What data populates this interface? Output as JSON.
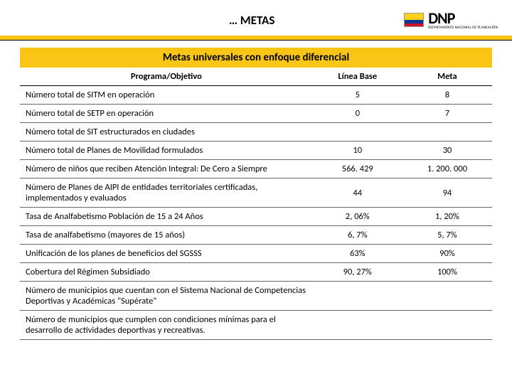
{
  "header": {
    "title": "… METAS",
    "logo_main": "DNP",
    "logo_sub": "DEPARTAMENTO NACIONAL DE PLANEACIÓN"
  },
  "banner": "Metas universales con enfoque diferencial",
  "columns": {
    "programa": "Programa/Objetivo",
    "linea_base": "Línea Base",
    "meta": "Meta"
  },
  "rows": [
    {
      "label": "Número total de SITM en operación",
      "lb": "5",
      "meta": "8"
    },
    {
      "label": "Número total de SETP en operación",
      "lb": "0",
      "meta": "7"
    },
    {
      "label": "Número total de SIT estructurados en ciudades",
      "lb": "",
      "meta": ""
    },
    {
      "label": "Número total de Planes de Movilidad formulados",
      "lb": "10",
      "meta": "30"
    },
    {
      "label": "Número de niños que reciben Atención Integral: De Cero a Siempre",
      "lb": "566. 429",
      "meta": "1. 200. 000"
    },
    {
      "label": "Número de Planes de AIPI de entidades territoriales certificadas, implementados y evaluados",
      "lb": "44",
      "meta": "94"
    },
    {
      "label": "Tasa de Analfabetismo Población de 15 a 24 Años",
      "lb": "2, 06%",
      "meta": "1, 20%"
    },
    {
      "label": "Tasa de analfabetismo (mayores de 15 años)",
      "lb": "6, 7%",
      "meta": "5, 7%"
    },
    {
      "label": "Unificación de los planes de beneficios del SGSSS",
      "lb": "63%",
      "meta": "90%"
    },
    {
      "label": "Cobertura del Régimen Subsidiado",
      "lb": "90, 27%",
      "meta": "100%"
    },
    {
      "label": "Número de municipios que cuentan con el Sistema Nacional de Competencias Deportivas y Académicas \"Supérate\"",
      "lb": "",
      "meta": ""
    },
    {
      "label": "Número de municipios que cumplen con condiciones mínimas para el desarrollo de actividades deportivas y recreativas.",
      "lb": "",
      "meta": ""
    }
  ],
  "colors": {
    "accent": "#f9c616",
    "flag_yellow": "#fcd116",
    "flag_blue": "#003893",
    "flag_red": "#ce1126"
  }
}
